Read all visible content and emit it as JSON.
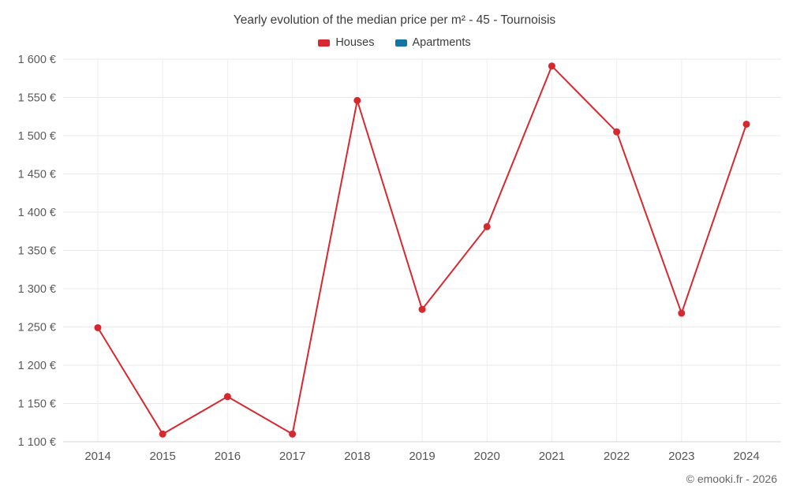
{
  "header": {
    "title": "Yearly evolution of the median price per m² - 45 - Tournoisis"
  },
  "legend": [
    {
      "label": "Houses",
      "color": "#d7282f"
    },
    {
      "label": "Apartments",
      "color": "#1374a6"
    }
  ],
  "footer": {
    "credit": "© emooki.fr - 2026"
  },
  "chart_data": {
    "type": "line",
    "title": "Yearly evolution of the median price per m² - 45 - Tournoisis",
    "categories": [
      "2014",
      "2015",
      "2016",
      "2017",
      "2018",
      "2019",
      "2020",
      "2021",
      "2022",
      "2023",
      "2024"
    ],
    "series": [
      {
        "name": "Houses",
        "color": "#d7282f",
        "values": [
          1249,
          1110,
          1159,
          1110,
          1546,
          1273,
          1381,
          1591,
          1505,
          1268,
          1515
        ]
      },
      {
        "name": "Apartments",
        "color": "#1374a6",
        "values": []
      }
    ],
    "xlabel": "",
    "ylabel": "",
    "ylim": [
      1100,
      1600
    ],
    "yticks": [
      1100,
      1150,
      1200,
      1250,
      1300,
      1350,
      1400,
      1450,
      1500,
      1550,
      1600
    ],
    "ytick_labels": [
      "1 100 €",
      "1 150 €",
      "1 200 €",
      "1 250 €",
      "1 300 €",
      "1 350 €",
      "1 400 €",
      "1 450 €",
      "1 500 €",
      "1 550 €",
      "1 600 €"
    ],
    "grid": true,
    "legend_position": "top"
  }
}
